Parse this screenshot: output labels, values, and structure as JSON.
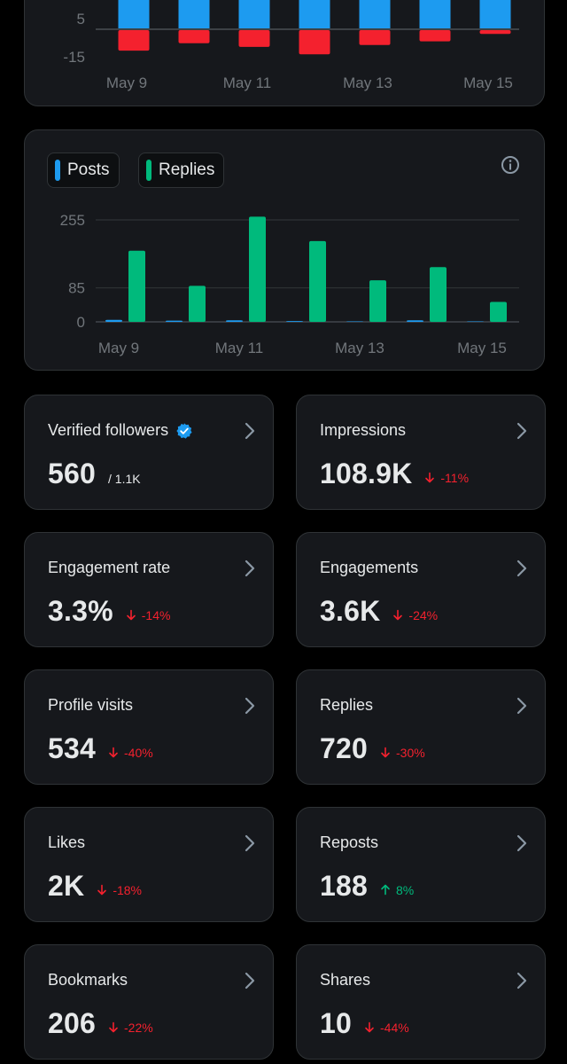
{
  "colors": {
    "posts": "#1d9bf0",
    "replies": "#00ba7c",
    "negative": "#f4212e",
    "positive": "#00ba7c"
  },
  "chart_data": [
    {
      "type": "bar",
      "categories": [
        "May 9",
        "May 10",
        "May 11",
        "May 12",
        "May 13",
        "May 14",
        "May 15"
      ],
      "x_tick_labels": [
        "May 9",
        "May 11",
        "May 13",
        "May 15"
      ],
      "y_tick_labels": [
        "5",
        "-15"
      ],
      "series": [
        {
          "values": [
            5,
            5,
            5,
            5,
            5,
            5,
            5
          ],
          "color": "#1d9bf0"
        },
        {
          "values": [
            -11,
            -7,
            -9,
            -13,
            -8,
            -6,
            -2
          ],
          "color": "#f4212e"
        }
      ],
      "ylim": [
        -16,
        9
      ],
      "note_visible_portion": "top of chart cropped"
    },
    {
      "type": "bar",
      "categories": [
        "May 9",
        "May 10",
        "May 11",
        "May 12",
        "May 13",
        "May 14",
        "May 15"
      ],
      "x_tick_labels": [
        "May 9",
        "May 11",
        "May 13",
        "May 15"
      ],
      "y_ticks": [
        0,
        85,
        255
      ],
      "series": [
        {
          "name": "Posts",
          "values": [
            5,
            3,
            4,
            2,
            1,
            4,
            1
          ]
        },
        {
          "name": "Replies",
          "values": [
            178,
            90,
            263,
            202,
            104,
            137,
            50
          ]
        }
      ],
      "ylim": [
        0,
        255
      ],
      "legend": "top-left",
      "grid": true
    }
  ],
  "legend": {
    "posts": "Posts",
    "replies": "Replies"
  },
  "stats": [
    {
      "title": "Verified followers",
      "value": "560",
      "sub": "/ 1.1K",
      "verified": true
    },
    {
      "title": "Impressions",
      "value": "108.9K",
      "delta": "-11%",
      "dir": "down"
    },
    {
      "title": "Engagement rate",
      "value": "3.3%",
      "delta": "-14%",
      "dir": "down"
    },
    {
      "title": "Engagements",
      "value": "3.6K",
      "delta": "-24%",
      "dir": "down"
    },
    {
      "title": "Profile visits",
      "value": "534",
      "delta": "-40%",
      "dir": "down"
    },
    {
      "title": "Replies",
      "value": "720",
      "delta": "-30%",
      "dir": "down"
    },
    {
      "title": "Likes",
      "value": "2K",
      "delta": "-18%",
      "dir": "down"
    },
    {
      "title": "Reposts",
      "value": "188",
      "delta": "8%",
      "dir": "up"
    },
    {
      "title": "Bookmarks",
      "value": "206",
      "delta": "-22%",
      "dir": "down"
    },
    {
      "title": "Shares",
      "value": "10",
      "delta": "-44%",
      "dir": "down"
    }
  ]
}
